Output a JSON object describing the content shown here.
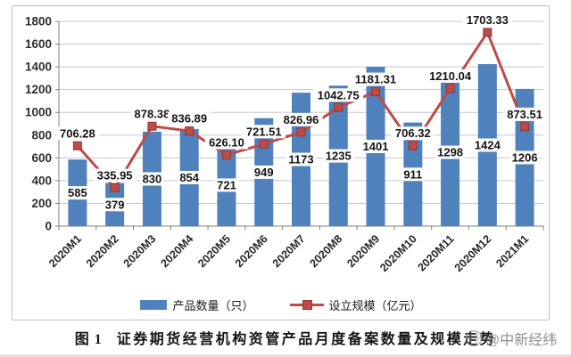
{
  "chart_data": {
    "type": "combo-bar-line",
    "categories": [
      "2020M1",
      "2020M2",
      "2020M3",
      "2020M4",
      "2020M5",
      "2020M6",
      "2020M7",
      "2020M8",
      "2020M9",
      "2020M10",
      "2020M11",
      "2020M12",
      "2021M1"
    ],
    "series": [
      {
        "name": "产品数量（只）",
        "type": "bar",
        "values": [
          585,
          379,
          830,
          854,
          721,
          949,
          1173,
          1235,
          1401,
          911,
          1298,
          1424,
          1206
        ],
        "labels": [
          "585",
          "379",
          "830",
          "854",
          "721",
          "949",
          "1173",
          "1235",
          "1401",
          "911",
          "1298",
          "1424",
          "1206"
        ]
      },
      {
        "name": "设立规模（亿元）",
        "type": "line",
        "values": [
          706.28,
          335.95,
          878.38,
          836.89,
          626.1,
          721.51,
          826.96,
          1042.75,
          1181.31,
          706.32,
          1210.04,
          1703.33,
          873.51
        ],
        "labels": [
          "706.28",
          "335.95",
          "878.38",
          "836.89",
          "626.10",
          "721.51",
          "826.96",
          "1042.75",
          "1181.31",
          "706.32",
          "1210.04",
          "1703.33",
          "873.51"
        ]
      }
    ],
    "ylim": [
      0,
      1800
    ],
    "ytick_step": 200,
    "grid": true,
    "legend_position": "bottom",
    "title": "",
    "xlabel": "",
    "ylabel": ""
  },
  "legend": {
    "bar_label": "产品数量（只）",
    "line_label": "设立规模（亿元）"
  },
  "caption": {
    "figure_no": "图 1",
    "title": "证券期货经营机构资管产品月度备案数量及规模走势"
  },
  "watermark": {
    "text": "@中新经纬",
    "icon": "globe-icon"
  },
  "colors": {
    "bar": "#4f81bd",
    "line": "#be4b48",
    "marker_border": "#8f3836",
    "grid": "#c6c6c6",
    "axis": "#808080",
    "tick_label": "#2f2f2f",
    "data_label": "#141414",
    "watermark": "#8f8f8f",
    "label_bg": "#ffffff"
  }
}
